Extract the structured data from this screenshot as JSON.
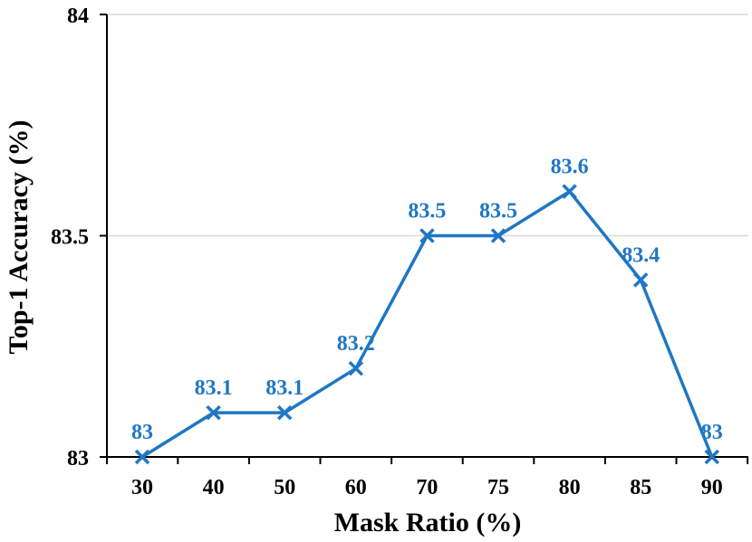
{
  "chart_data": {
    "type": "line",
    "title": "",
    "xlabel": "Mask Ratio (%)",
    "ylabel": "Top-1 Accuracy (%)",
    "categories": [
      "30",
      "40",
      "50",
      "60",
      "70",
      "75",
      "80",
      "85",
      "90"
    ],
    "series": [
      {
        "values": [
          83,
          83.1,
          83.1,
          83.2,
          83.5,
          83.5,
          83.6,
          83.4,
          83
        ],
        "labels": [
          "83",
          "83.1",
          "83.1",
          "83.2",
          "83.5",
          "83.5",
          "83.6",
          "83.4",
          "83"
        ],
        "color": "#1f77c4",
        "marker": "x"
      }
    ],
    "ylim": [
      83,
      84
    ],
    "yticks": [
      "83",
      "83.5",
      "84"
    ],
    "grid": true,
    "legend": "none"
  }
}
